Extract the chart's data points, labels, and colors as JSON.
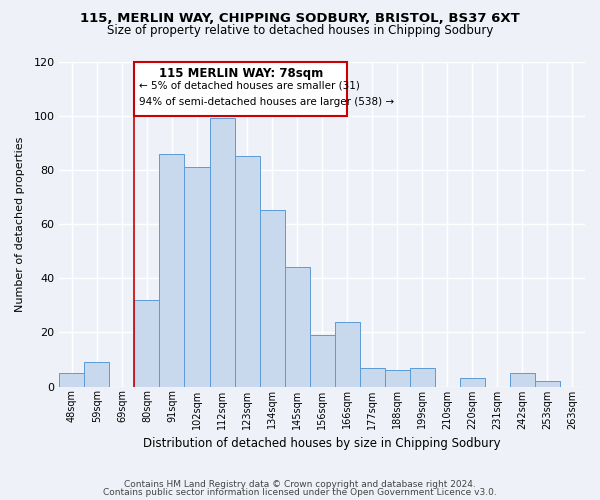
{
  "title": "115, MERLIN WAY, CHIPPING SODBURY, BRISTOL, BS37 6XT",
  "subtitle": "Size of property relative to detached houses in Chipping Sodbury",
  "xlabel": "Distribution of detached houses by size in Chipping Sodbury",
  "ylabel": "Number of detached properties",
  "footer_line1": "Contains HM Land Registry data © Crown copyright and database right 2024.",
  "footer_line2": "Contains public sector information licensed under the Open Government Licence v3.0.",
  "bin_labels": [
    "48sqm",
    "59sqm",
    "69sqm",
    "80sqm",
    "91sqm",
    "102sqm",
    "112sqm",
    "123sqm",
    "134sqm",
    "145sqm",
    "156sqm",
    "166sqm",
    "177sqm",
    "188sqm",
    "199sqm",
    "210sqm",
    "220sqm",
    "231sqm",
    "242sqm",
    "253sqm",
    "263sqm"
  ],
  "bar_heights": [
    5,
    9,
    0,
    32,
    86,
    81,
    99,
    85,
    65,
    44,
    19,
    24,
    7,
    6,
    7,
    0,
    3,
    0,
    5,
    2,
    0
  ],
  "bar_color": "#c9d9ed",
  "bar_edge_color": "#5b9bd5",
  "ylim": [
    0,
    120
  ],
  "yticks": [
    0,
    20,
    40,
    60,
    80,
    100,
    120
  ],
  "vline_x_index": 3,
  "vline_color": "#cc0000",
  "annotation_title": "115 MERLIN WAY: 78sqm",
  "annotation_line1": "← 5% of detached houses are smaller (31)",
  "annotation_line2": "94% of semi-detached houses are larger (538) →",
  "annotation_box_color": "#ffffff",
  "annotation_box_edge": "#cc0000",
  "background_color": "#eef2f8",
  "grid_color": "#ffffff"
}
